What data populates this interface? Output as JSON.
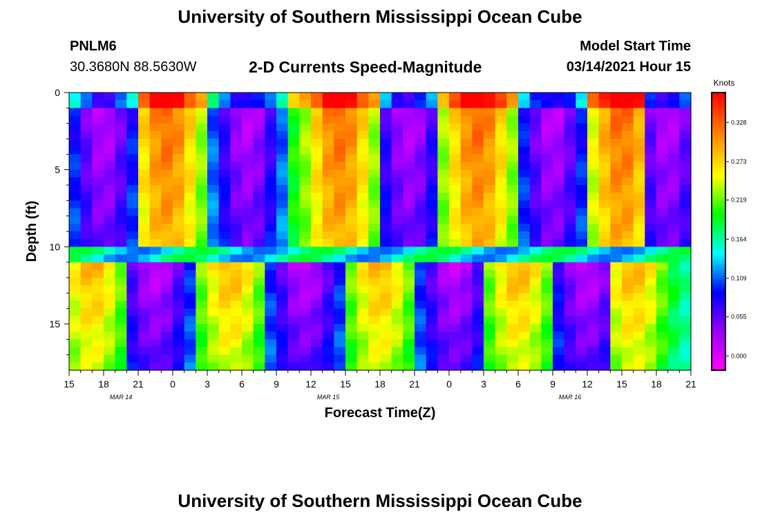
{
  "header": {
    "title": "University of Southern Mississippi Ocean Cube",
    "station_id": "PNLM6",
    "coords": "30.3680N 88.5630W",
    "model_start_label": "Model Start Time",
    "model_start_value": "03/14/2021 Hour 15",
    "footer_title": "University of Southern Mississippi Ocean Cube"
  },
  "chart_data": {
    "type": "heatmap",
    "title": "2-D Currents Speed-Magnitude",
    "xlabel": "Forecast Time(Z)",
    "ylabel": "Depth (ft)",
    "x_tick_labels": [
      "15",
      "18",
      "21",
      "0",
      "3",
      "6",
      "9",
      "12",
      "15",
      "18",
      "21",
      "0",
      "3",
      "6",
      "9",
      "12",
      "15",
      "18",
      "21"
    ],
    "date_labels": [
      {
        "label": "MAR  14",
        "after_tick": 1
      },
      {
        "label": "MAR  15",
        "after_tick": 7
      },
      {
        "label": "MAR  16",
        "after_tick": 14
      }
    ],
    "y_tick_labels": [
      "0",
      "5",
      "10",
      "15"
    ],
    "y_tick_values": [
      0,
      5,
      10,
      15
    ],
    "ylim": [
      0,
      18
    ],
    "colorbar": {
      "unit": "Knots",
      "tick_labels": [
        "0.328",
        "0.273",
        "0.219",
        "0.164",
        "0.109",
        "0.055",
        "0.000"
      ],
      "tick_values": [
        0.328,
        0.273,
        0.219,
        0.164,
        0.109,
        0.055,
        0.0
      ],
      "range": [
        -0.02,
        0.37
      ]
    },
    "hours": 54,
    "depth_rows": 36,
    "depth_layers": [
      {
        "name": "upper",
        "rows": [
          0,
          10
        ],
        "peaks": [
          8.5,
          23.5,
          35.5,
          48.0
        ],
        "troughs": [
          3.0,
          15.5,
          29.5,
          42.0,
          52.0
        ],
        "amp": 0.16
      },
      {
        "name": "lower",
        "rows": [
          11,
          17
        ],
        "peaks": [
          2.0,
          14.0,
          27.0,
          39.0,
          49.0
        ],
        "troughs": [
          7.5,
          20.5,
          33.5,
          45.0
        ],
        "amp": 0.14
      }
    ]
  }
}
